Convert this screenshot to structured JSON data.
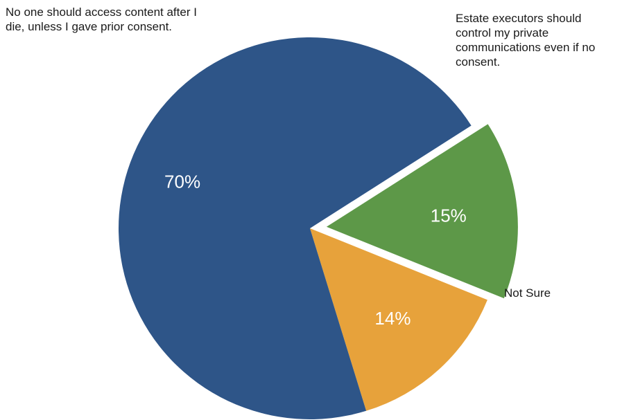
{
  "chart_data": {
    "type": "pie",
    "slices": [
      {
        "label": "No one should access content after I die, unless I gave prior consent.",
        "value": 70,
        "display": "70%",
        "color": "#2e5588",
        "exploded": false
      },
      {
        "label": "Estate executors should control my private communications even if no consent.",
        "value": 15,
        "display": "15%",
        "color": "#5d9848",
        "exploded": true
      },
      {
        "label": "Not Sure",
        "value": 14,
        "display": "14%",
        "color": "#e7a23b",
        "exploded": false
      }
    ],
    "legend": "none (labels placed next to slices)"
  }
}
